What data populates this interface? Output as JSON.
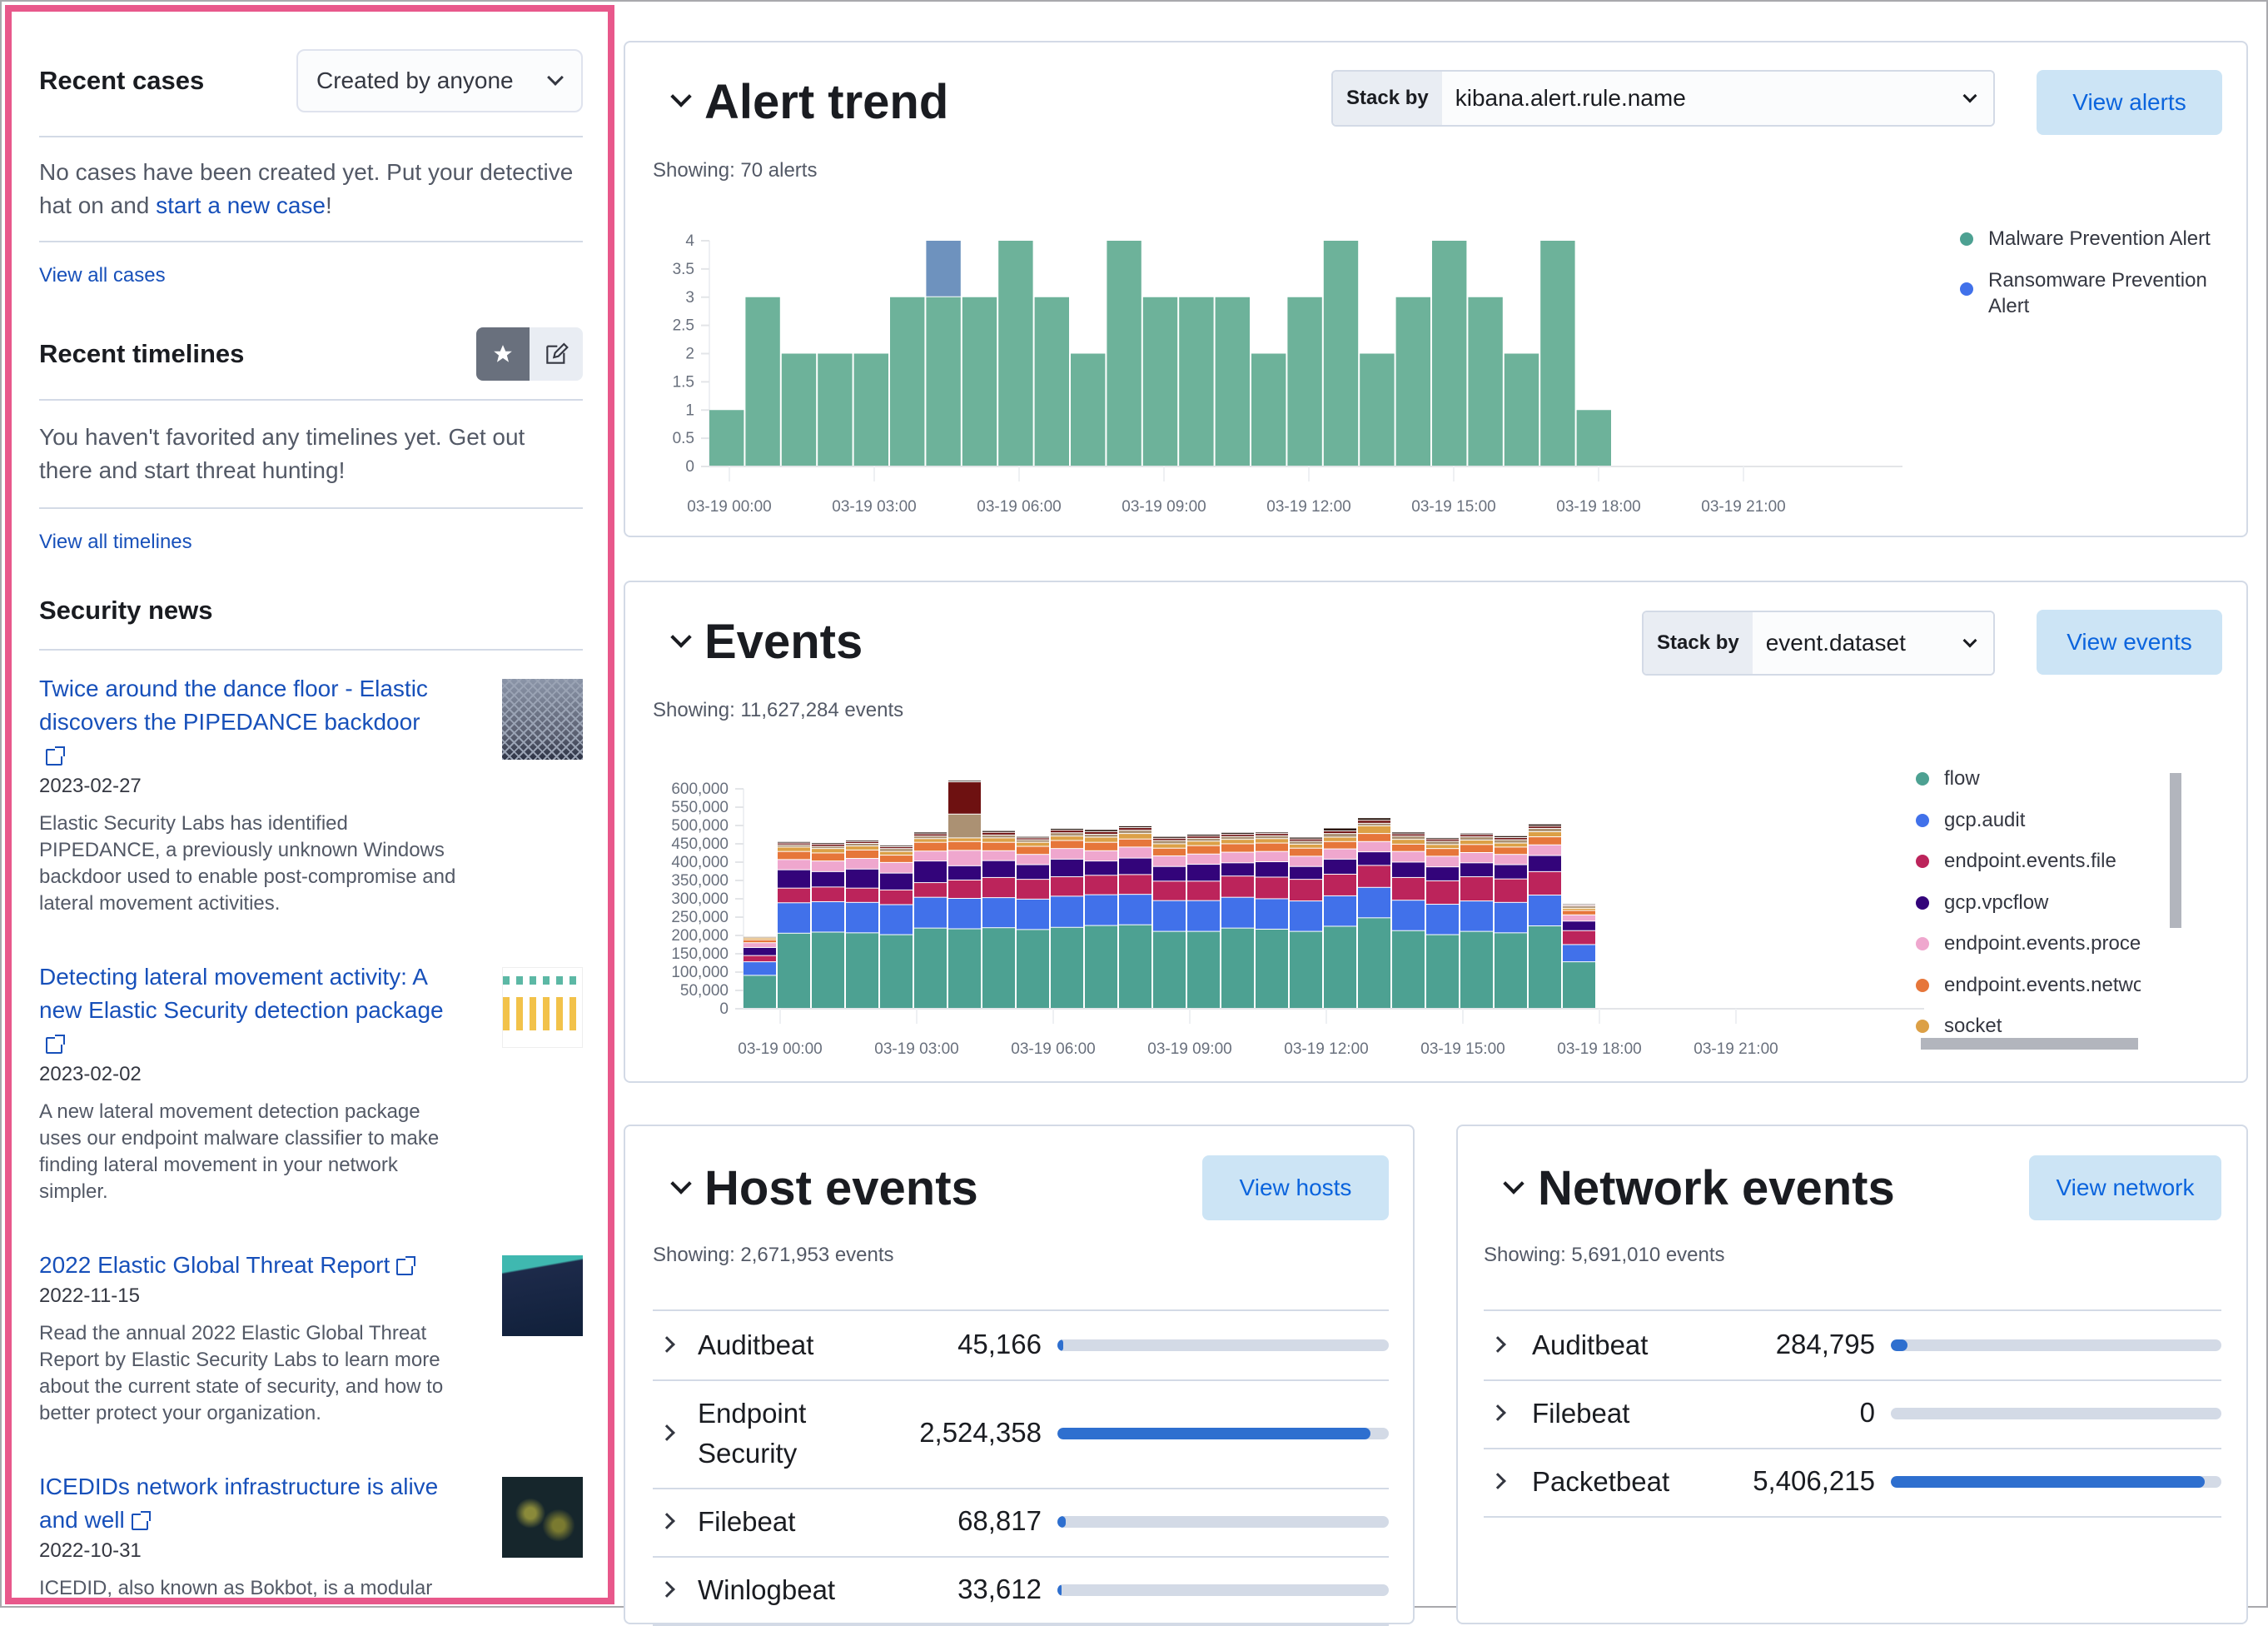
{
  "recent_cases": {
    "title": "Recent cases",
    "filter": "Created by anyone",
    "empty_text": "No cases have been created yet. Put your detective hat on and ",
    "empty_link": "start a new case",
    "empty_suffix": "!",
    "view_all": "View all cases"
  },
  "recent_timelines": {
    "title": "Recent timelines",
    "empty_text": "You haven't favorited any timelines yet. Get out there and start threat hunting!",
    "view_all": "View all timelines",
    "icons": [
      "star-icon",
      "pencil-square-icon"
    ]
  },
  "security_news": {
    "title": "Security news",
    "items": [
      {
        "title": "Twice around the dance floor - Elastic discovers the PIPEDANCE backdoor",
        "date": "2023-02-27",
        "desc": "Elastic Security Labs has identified PIPEDANCE, a previously unknown Windows backdoor used to enable post-compromise and lateral movement activities."
      },
      {
        "title": "Detecting lateral movement activity: A new Elastic Security detection package",
        "date": "2023-02-02",
        "desc": "A new lateral movement detection package uses our endpoint malware classifier to make finding lateral movement in your network simpler."
      },
      {
        "title": "2022 Elastic Global Threat Report",
        "date": "2022-11-15",
        "desc": "Read the annual 2022 Elastic Global Threat Report by Elastic Security Labs to learn more about the current state of security, and how to better protect your organization."
      },
      {
        "title": "ICEDIDs network infrastructure is alive and well",
        "date": "2022-10-31",
        "desc": "ICEDID, also known as Bokbot, is a modular"
      }
    ]
  },
  "alert_trend": {
    "title": "Alert trend",
    "stack_by_label": "Stack by",
    "stack_by_value": "kibana.alert.rule.name",
    "view_button": "View alerts",
    "showing": "Showing: 70 alerts"
  },
  "events": {
    "title": "Events",
    "stack_by_label": "Stack by",
    "stack_by_value": "event.dataset",
    "view_button": "View events",
    "showing": "Showing: 11,627,284 events"
  },
  "host_events": {
    "title": "Host events",
    "view_button": "View hosts",
    "showing": "Showing: 2,671,953 events",
    "rows": [
      {
        "name": "Auditbeat",
        "count": "45,166",
        "fill_pct": 1.7
      },
      {
        "name": "Endpoint Security",
        "count": "2,524,358",
        "fill_pct": 94.5
      },
      {
        "name": "Filebeat",
        "count": "68,817",
        "fill_pct": 2.6
      },
      {
        "name": "Winlogbeat",
        "count": "33,612",
        "fill_pct": 1.3
      }
    ]
  },
  "network_events": {
    "title": "Network events",
    "view_button": "View network",
    "showing": "Showing: 5,691,010 events",
    "rows": [
      {
        "name": "Auditbeat",
        "count": "284,795",
        "fill_pct": 5.0
      },
      {
        "name": "Filebeat",
        "count": "0",
        "fill_pct": 0
      },
      {
        "name": "Packetbeat",
        "count": "5,406,215",
        "fill_pct": 95.0
      }
    ]
  },
  "chart_data": [
    {
      "type": "bar",
      "stacked": true,
      "ylim": [
        0,
        4
      ],
      "yticks": [
        "0",
        "0.5",
        "1",
        "1.5",
        "2",
        "2.5",
        "3",
        "3.5",
        "4"
      ],
      "xticks": [
        "03-19 00:00",
        "03-19 03:00",
        "03-19 06:00",
        "03-19 09:00",
        "03-19 12:00",
        "03-19 15:00",
        "03-19 18:00",
        "03-19 21:00"
      ],
      "legend": "right",
      "grid": false,
      "series": [
        {
          "name": "Malware Prevention Alert",
          "color": "#6DB29A",
          "values": [
            1,
            3,
            2,
            2,
            2,
            3,
            3,
            3,
            4,
            3,
            2,
            4,
            3,
            3,
            3,
            2,
            3,
            4,
            2,
            3,
            4,
            3,
            2,
            4,
            1
          ]
        },
        {
          "name": "Ransomware Prevention Alert",
          "color": "#6E92BE",
          "values": [
            0,
            0,
            0,
            0,
            0,
            0,
            1,
            0,
            0,
            0,
            0,
            0,
            0,
            0,
            0,
            0,
            0,
            0,
            0,
            0,
            0,
            0,
            0,
            0,
            0
          ]
        }
      ]
    },
    {
      "type": "bar",
      "stacked": true,
      "ylim": [
        0,
        600000
      ],
      "yticks": [
        "0",
        "50,000",
        "100,000",
        "150,000",
        "200,000",
        "250,000",
        "300,000",
        "350,000",
        "400,000",
        "450,000",
        "500,000",
        "550,000",
        "600,000"
      ],
      "xticks": [
        "03-19 00:00",
        "03-19 03:00",
        "03-19 06:00",
        "03-19 09:00",
        "03-19 12:00",
        "03-19 15:00",
        "03-19 18:00",
        "03-19 21:00"
      ],
      "legend": "right",
      "grid": false,
      "series": [
        {
          "name": "flow",
          "color": "#4DA192",
          "values": [
            90000,
            205000,
            208000,
            206000,
            201000,
            219000,
            217000,
            220000,
            215000,
            221000,
            226000,
            228000,
            210000,
            210000,
            219000,
            216000,
            210000,
            224000,
            247000,
            212000,
            201000,
            210000,
            206000,
            225000,
            127000
          ]
        },
        {
          "name": "gcp.audit",
          "color": "#4171EA",
          "values": [
            37000,
            83000,
            83000,
            83000,
            82000,
            84000,
            83000,
            82000,
            83000,
            85000,
            84000,
            83000,
            84000,
            84000,
            84000,
            83000,
            83000,
            83000,
            83000,
            83000,
            83000,
            83000,
            83000,
            84000,
            47000
          ]
        },
        {
          "name": "endpoint.events.file",
          "color": "#BC245B",
          "values": [
            17000,
            40000,
            40000,
            39000,
            40000,
            40000,
            50000,
            55000,
            54000,
            53000,
            53000,
            54000,
            53000,
            53000,
            58000,
            59000,
            59000,
            59000,
            60000,
            62000,
            64000,
            66000,
            64000,
            64000,
            38000
          ]
        },
        {
          "name": "gcp.vpcflow",
          "color": "#33047A",
          "values": [
            22000,
            50000,
            42000,
            52000,
            46000,
            59000,
            39000,
            46000,
            40000,
            48000,
            39000,
            45000,
            40000,
            46000,
            36000,
            42000,
            35000,
            41000,
            37000,
            42000,
            38000,
            38000,
            39000,
            44000,
            26000
          ]
        },
        {
          "name": "endpoint.events.proce",
          "color": "#EFA7CE",
          "values": [
            13000,
            28000,
            29000,
            29000,
            29000,
            27000,
            42000,
            27000,
            28000,
            29000,
            28000,
            30000,
            29000,
            28000,
            29000,
            28000,
            28000,
            28000,
            28000,
            29000,
            29000,
            28000,
            28000,
            29000,
            17000
          ]
        },
        {
          "name": "endpoint.events.netwo",
          "color": "#E6763A",
          "values": [
            8000,
            22000,
            22000,
            23000,
            20000,
            24000,
            24000,
            23000,
            22000,
            22000,
            23000,
            22000,
            21000,
            23000,
            23000,
            23000,
            22000,
            20000,
            22000,
            20000,
            21000,
            22000,
            20000,
            22000,
            12000
          ]
        },
        {
          "name": "socket",
          "color": "#DCA046",
          "values": [
            5000,
            12000,
            12000,
            11000,
            10000,
            10000,
            10000,
            12000,
            11000,
            12000,
            14000,
            15000,
            12000,
            12000,
            12000,
            12000,
            11000,
            12000,
            21000,
            13000,
            11000,
            12000,
            11000,
            14000,
            6000
          ]
        },
        {
          "color": "#AB9173",
          "values": [
            4000,
            6000,
            6000,
            7000,
            8000,
            7000,
            65000,
            8000,
            7000,
            9000,
            8000,
            9000,
            9000,
            8000,
            8000,
            8000,
            8000,
            10000,
            7000,
            9000,
            9000,
            9000,
            9000,
            9000,
            6000
          ]
        },
        {
          "color": "#6E1111",
          "values": [
            2000,
            5000,
            6000,
            5000,
            5000,
            6000,
            88000,
            7000,
            5000,
            7000,
            7000,
            7000,
            6000,
            6000,
            6000,
            6000,
            6000,
            7000,
            8000,
            6000,
            6000,
            6000,
            6000,
            6000,
            3000
          ]
        },
        {
          "color": "#2A1710",
          "values": [
            2000,
            4000,
            4000,
            4000,
            4000,
            5000,
            4000,
            5000,
            4000,
            5000,
            6000,
            5000,
            5000,
            5000,
            5000,
            4000,
            5000,
            8000,
            7000,
            5000,
            4000,
            4000,
            5000,
            6000,
            3000
          ]
        }
      ]
    }
  ]
}
